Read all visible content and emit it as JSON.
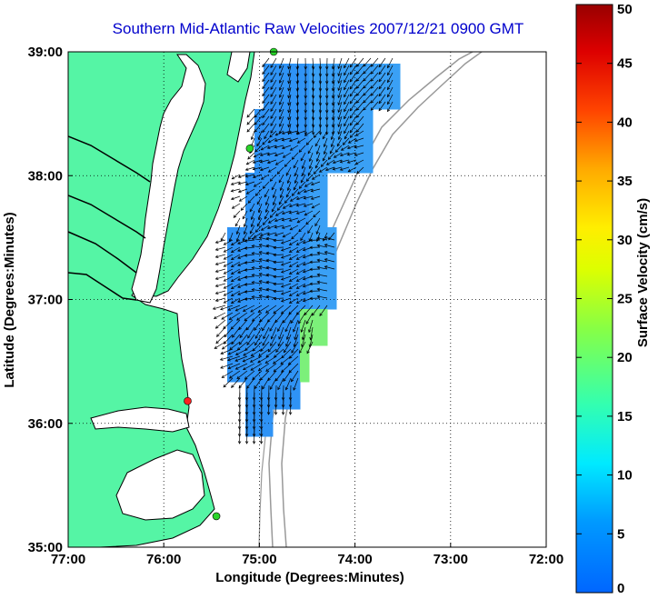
{
  "title": "Southern Mid-Atlantic Raw Velocities 2007/12/21 0900 GMT",
  "map": {
    "xlabel": "Longitude (Degrees:Minutes)",
    "ylabel": "Latitude (Degrees:Minutes)",
    "lon_range": [
      -77,
      -72
    ],
    "lat_range": [
      35,
      39
    ],
    "x_ticks": [
      {
        "value": -77,
        "label": "77:00"
      },
      {
        "value": -76,
        "label": "76:00"
      },
      {
        "value": -75,
        "label": "75:00"
      },
      {
        "value": -74,
        "label": "74:00"
      },
      {
        "value": -73,
        "label": "73:00"
      },
      {
        "value": -72,
        "label": "72:00"
      }
    ],
    "y_ticks": [
      {
        "value": 39,
        "label": "39:00"
      },
      {
        "value": 38,
        "label": "38:00"
      },
      {
        "value": 37,
        "label": "37:00"
      },
      {
        "value": 36,
        "label": "36:00"
      },
      {
        "value": 35,
        "label": "35:00"
      }
    ],
    "grid": true,
    "land_color": "#55f5a5",
    "coast_color": "#000000",
    "bathymetry_color": "#999999",
    "stations": [
      {
        "lon": -74.85,
        "lat": 39.0,
        "color": "#2ad42a"
      },
      {
        "lon": -75.1,
        "lat": 38.22,
        "color": "#2ad42a"
      },
      {
        "lon": -75.75,
        "lat": 36.18,
        "color": "#ff2020"
      },
      {
        "lon": -75.45,
        "lat": 35.25,
        "color": "#2ad42a"
      }
    ]
  },
  "colorbar": {
    "label": "Surface Velocity (cm/s)",
    "min": 0,
    "max": 50,
    "ticks": [
      {
        "value": 0,
        "label": "0"
      },
      {
        "value": 5,
        "label": "5"
      },
      {
        "value": 10,
        "label": "10"
      },
      {
        "value": 15,
        "label": "15"
      },
      {
        "value": 20,
        "label": "20"
      },
      {
        "value": 25,
        "label": "25"
      },
      {
        "value": 30,
        "label": "30"
      },
      {
        "value": 35,
        "label": "35"
      },
      {
        "value": 40,
        "label": "40"
      },
      {
        "value": 45,
        "label": "45"
      },
      {
        "value": 50,
        "label": "50"
      }
    ]
  }
}
